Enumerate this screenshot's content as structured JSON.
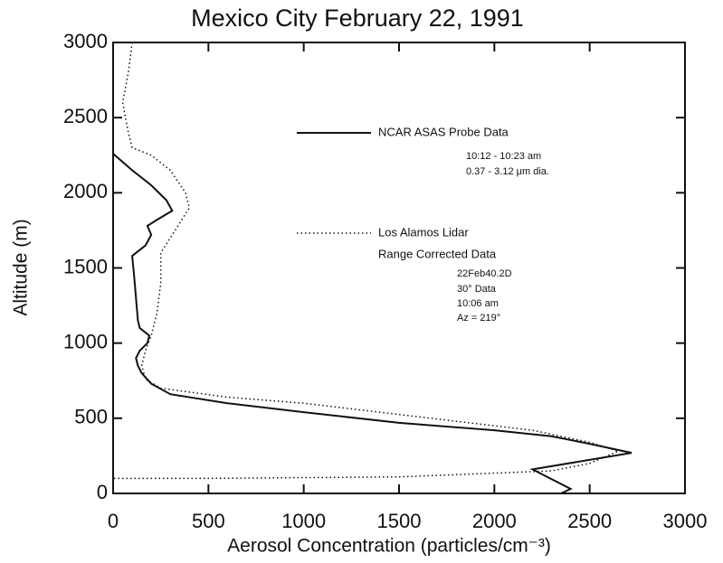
{
  "chart_data": {
    "type": "line",
    "title": "Mexico City  February 22, 1991",
    "xlabel": "Aerosol Concentration  (particles/cm⁻³)",
    "ylabel": "Altitude  (m)",
    "xlim": [
      0,
      3000
    ],
    "ylim": [
      0,
      3000
    ],
    "xticks": [
      0,
      500,
      1000,
      1500,
      2000,
      2500,
      3000
    ],
    "yticks": [
      0,
      500,
      1000,
      1500,
      2000,
      2500,
      3000
    ],
    "series": [
      {
        "name": "NCAR ASAS Probe Data",
        "color": "#111111",
        "style": "solid",
        "x": [
          0,
          100,
          200,
          280,
          310,
          230,
          180,
          200,
          170,
          100,
          110,
          120,
          130,
          140,
          190,
          180,
          140,
          120,
          130,
          150,
          200,
          300,
          600,
          1000,
          1500,
          2000,
          2300,
          2500,
          2720,
          2200,
          2400,
          2350
        ],
        "y": [
          2260,
          2150,
          2050,
          1950,
          1880,
          1820,
          1780,
          1720,
          1650,
          1580,
          1450,
          1300,
          1150,
          1100,
          1050,
          1000,
          950,
          900,
          850,
          800,
          730,
          660,
          600,
          540,
          470,
          420,
          380,
          330,
          270,
          160,
          30,
          0
        ]
      },
      {
        "name": "Los Alamos Lidar",
        "color": "#111111",
        "style": "dotted",
        "x": [
          100,
          80,
          50,
          80,
          100,
          200,
          300,
          380,
          400,
          350,
          300,
          250,
          250,
          230,
          200,
          170,
          150,
          170,
          250,
          600,
          1000,
          1400,
          1800,
          2200,
          2500,
          2650,
          2500,
          2300,
          1500,
          500,
          0
        ],
        "y": [
          3000,
          2800,
          2600,
          2400,
          2300,
          2250,
          2150,
          2000,
          1900,
          1800,
          1700,
          1600,
          1400,
          1200,
          1050,
          950,
          850,
          760,
          700,
          640,
          600,
          540,
          480,
          420,
          340,
          280,
          200,
          150,
          110,
          100,
          100
        ]
      }
    ],
    "annotations": [
      "10:12 - 10:23 am",
      "0.37 - 3.12 μm dia.",
      "Range Corrected Data",
      "22Feb40.2D",
      "30° Data",
      "10:06 am",
      "Az = 219°"
    ]
  }
}
